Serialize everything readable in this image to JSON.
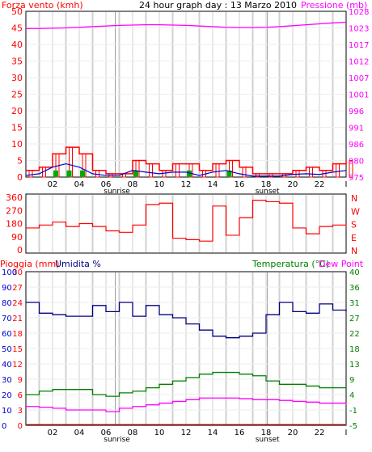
{
  "header": {
    "wind_label": "Forza vento (kmh)",
    "title": "24 hour graph day : 13 Marzo 2010",
    "pressure_label": "Pressione (mb)"
  },
  "middle_header": {
    "rain_label": "Pioggia (mm)",
    "humidity_label": "Umidita %",
    "temp_label": "Temperatura (°C)",
    "dew_label": "Dew Point"
  },
  "x_ticks": [
    "02",
    "04",
    "06",
    "08",
    "10",
    "12",
    "14",
    "16",
    "18",
    "20",
    "22",
    "I"
  ],
  "sunrise_label": "sunrise",
  "sunset_label": "sunset",
  "compass": [
    "N",
    "W",
    "S",
    "E",
    "N"
  ],
  "colors": {
    "wind": "#ff0000",
    "gust": "#0000cc",
    "calm_bars": "#00aa00",
    "pressure": "#ff00ff",
    "humidity": "#000080",
    "temperature": "#008000",
    "dewpoint": "#ff00ff",
    "rain": "#ff0000",
    "gridline": "#d0d0d0"
  },
  "chart_data": [
    {
      "type": "line",
      "title": "24 hour graph day : 13 Marzo 2010",
      "xlabel": "",
      "ylabel": "Forza vento (kmh)",
      "ylabel_right": "Pressione (mb)",
      "ylim": [
        0,
        50
      ],
      "y_ticks": [
        0,
        5,
        10,
        15,
        20,
        25,
        30,
        35,
        40,
        45,
        50
      ],
      "y2_ticks": [
        975,
        980,
        986,
        991,
        996,
        1001,
        1007,
        1012,
        1017,
        1023,
        1028
      ],
      "y2lim": [
        975,
        1028
      ],
      "x": [
        0,
        1,
        2,
        3,
        4,
        5,
        6,
        7,
        8,
        9,
        10,
        11,
        12,
        13,
        14,
        15,
        16,
        17,
        18,
        19,
        20,
        21,
        22,
        23,
        24
      ],
      "series": [
        {
          "name": "Forza vento (kmh)",
          "axis": "left",
          "style": "step",
          "values": [
            2,
            3,
            7,
            9,
            7,
            2,
            1,
            1,
            5,
            4,
            2,
            4,
            4,
            2,
            4,
            5,
            3,
            1,
            1,
            1,
            2,
            3,
            2,
            4,
            5
          ]
        },
        {
          "name": "gust",
          "axis": "left",
          "style": "line",
          "values": [
            0.5,
            1,
            3,
            4,
            3,
            1,
            0.5,
            0.5,
            2,
            1.5,
            1,
            1.5,
            1.5,
            0.5,
            1.5,
            2,
            1,
            0.3,
            0.3,
            0.3,
            0.8,
            1,
            0.8,
            1.5,
            2
          ]
        },
        {
          "name": "Pressione (mb)",
          "axis": "right",
          "style": "line",
          "values": [
            1022.5,
            1022.5,
            1022.6,
            1022.7,
            1022.9,
            1023.1,
            1023.3,
            1023.5,
            1023.6,
            1023.7,
            1023.7,
            1023.6,
            1023.5,
            1023.3,
            1023.1,
            1022.9,
            1022.8,
            1022.8,
            1022.9,
            1023.1,
            1023.4,
            1023.7,
            1024.0,
            1024.3,
            1024.5
          ]
        }
      ]
    },
    {
      "type": "line",
      "title": "",
      "ylim": [
        0,
        360
      ],
      "y_ticks": [
        0,
        90,
        180,
        270,
        360
      ],
      "x": [
        0,
        1,
        2,
        3,
        4,
        5,
        6,
        7,
        8,
        9,
        10,
        11,
        12,
        13,
        14,
        15,
        16,
        17,
        18,
        19,
        20,
        21,
        22,
        23,
        24
      ],
      "series": [
        {
          "name": "",
          "values": [
            150,
            170,
            190,
            160,
            180,
            160,
            130,
            120,
            170,
            310,
            320,
            80,
            70,
            60,
            300,
            100,
            220,
            340,
            330,
            320,
            150,
            110,
            160,
            170,
            160
          ]
        }
      ]
    },
    {
      "type": "line",
      "title": "",
      "ylabel": "Pioggia (mm)",
      "ylabel_left2": "Umidita %",
      "ylabel_right": "Temperatura (°C) Dew Point",
      "y_rain_ticks": [
        0,
        3,
        6,
        9,
        12,
        15,
        18,
        21,
        24,
        27,
        30
      ],
      "y_hum_ticks": [
        0,
        10,
        20,
        30,
        40,
        50,
        60,
        70,
        80,
        90,
        100
      ],
      "y_temp_ticks": [
        -5,
        -1,
        4,
        9,
        13,
        18,
        22,
        27,
        31,
        36,
        40
      ],
      "ylim_temp": [
        -5,
        40
      ],
      "x": [
        0,
        1,
        2,
        3,
        4,
        5,
        6,
        7,
        8,
        9,
        10,
        11,
        12,
        13,
        14,
        15,
        16,
        17,
        18,
        19,
        20,
        21,
        22,
        23,
        24
      ],
      "series": [
        {
          "name": "Umidita %",
          "axis": "humidity",
          "values": [
            80,
            73,
            72,
            71,
            71,
            78,
            74,
            80,
            71,
            78,
            72,
            70,
            66,
            62,
            58,
            57,
            58,
            60,
            72,
            80,
            74,
            73,
            79,
            75,
            74
          ]
        },
        {
          "name": "Temperatura (°C)",
          "axis": "temp",
          "values": [
            4.0,
            5.0,
            5.5,
            5.5,
            5.5,
            4.0,
            3.5,
            4.5,
            5.0,
            6.0,
            7.0,
            8.0,
            9.0,
            10.0,
            10.5,
            10.5,
            10.0,
            9.5,
            8.0,
            7.0,
            7.0,
            6.5,
            6.0,
            6.0,
            6.0
          ]
        },
        {
          "name": "Dew Point",
          "axis": "temp",
          "values": [
            0.5,
            0.3,
            0.0,
            -0.5,
            -0.5,
            -0.5,
            -1.0,
            0.0,
            0.5,
            1.0,
            1.5,
            2.0,
            2.5,
            3.0,
            3.0,
            3.0,
            2.8,
            2.5,
            2.5,
            2.3,
            2.0,
            1.8,
            1.5,
            1.5,
            1.0
          ]
        },
        {
          "name": "Pioggia (mm)",
          "axis": "rain",
          "values": [
            0,
            0,
            0,
            0,
            0,
            0,
            0,
            0,
            0,
            0,
            0,
            0,
            0,
            0,
            0,
            0,
            0,
            0,
            0,
            0,
            0,
            0,
            0,
            0,
            0
          ]
        }
      ]
    }
  ]
}
